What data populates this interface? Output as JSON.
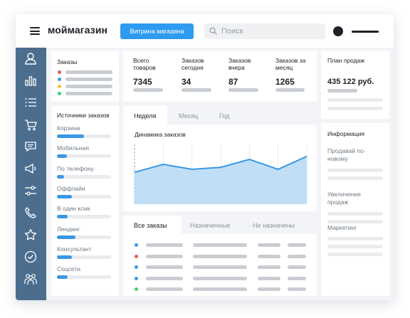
{
  "header": {
    "brand": "моймагазин",
    "store_button": "Витрина магазина",
    "search_placeholder": "Поиск"
  },
  "sidebar": {
    "items": [
      "user-icon",
      "bar-chart-icon",
      "list-icon",
      "cart-icon",
      "chat-icon",
      "megaphone-icon",
      "sliders-icon",
      "phone-icon",
      "star-icon",
      "check-circle-icon",
      "users-icon"
    ]
  },
  "orders_card": {
    "title": "Заказы",
    "status_colors": [
      "#e05b5b",
      "#3a97e4",
      "#f2c23a",
      "#39d27a"
    ]
  },
  "stats": [
    {
      "label": "Всего товаров",
      "value": "7345"
    },
    {
      "label": "Заказов сегодня",
      "value": "34"
    },
    {
      "label": "Заказов вчера",
      "value": "87"
    },
    {
      "label": "Заказов за месяц",
      "value": "1265"
    }
  ],
  "plan": {
    "label": "План продаж",
    "value": "435 122 руб."
  },
  "sources": {
    "title": "Источники заказов",
    "items": [
      {
        "label": "Корзина",
        "share": 0.5
      },
      {
        "label": "Мобильная",
        "share": 0.19
      },
      {
        "label": "По телефону",
        "share": 0.13
      },
      {
        "label": "Оффлайн",
        "share": 0.27
      },
      {
        "label": "В один клик",
        "share": 0.2
      },
      {
        "label": "Лендинг",
        "share": 0.34
      },
      {
        "label": "Консультант",
        "share": 0.27
      },
      {
        "label": "Соцсети",
        "share": 0.2
      }
    ]
  },
  "chart_tabs": [
    "Неделя",
    "Месяц",
    "Год"
  ],
  "chart_data": {
    "type": "area",
    "title": "Динамика заказов",
    "values": [
      52,
      60,
      55,
      57,
      65,
      55,
      68
    ],
    "ylim": [
      20,
      80
    ],
    "color": "#3a97e4",
    "fill": "#b9dbf6",
    "grid": true
  },
  "order_tabs": [
    "Все заказы",
    "Назначенные",
    "Не назначены"
  ],
  "order_rows": [
    {
      "status_color": "#3a97e4"
    },
    {
      "status_color": "#e05b5b"
    },
    {
      "status_color": "#3a97e4"
    },
    {
      "status_color": "#3a97e4"
    },
    {
      "status_color": "#39d27a"
    }
  ],
  "info": {
    "title": "Информация",
    "items": [
      "Продавай по-новому",
      "Увеличение продаж",
      "Маркетинг"
    ]
  }
}
